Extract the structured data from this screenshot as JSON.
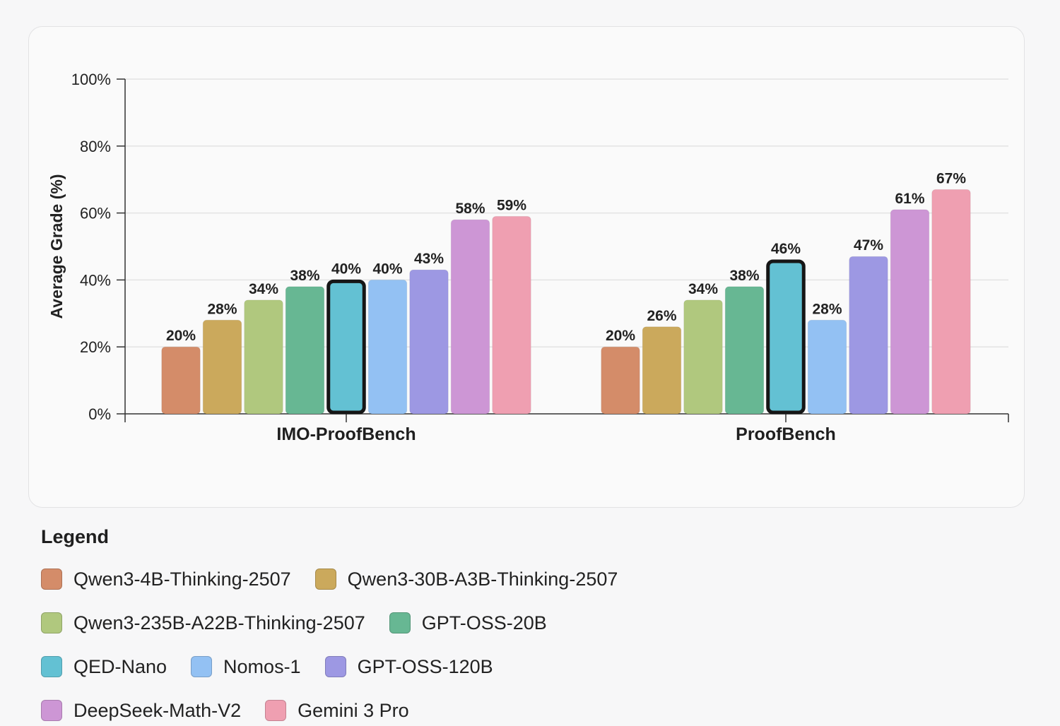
{
  "chart_data": {
    "type": "bar",
    "title": "",
    "xlabel": "",
    "ylabel": "Average Grade (%)",
    "ylim": [
      0,
      100
    ],
    "yticks": [
      "0%",
      "20%",
      "40%",
      "60%",
      "80%",
      "100%"
    ],
    "grid": true,
    "categories": [
      "IMO-ProofBench",
      "ProofBench"
    ],
    "highlighted_series": "QED-Nano",
    "series": [
      {
        "name": "Qwen3-4B-Thinking-2507",
        "color": "#d48c69",
        "values": [
          20,
          20
        ],
        "labels": [
          "20%",
          "20%"
        ]
      },
      {
        "name": "Qwen3-30B-A3B-Thinking-2507",
        "color": "#cba95c",
        "values": [
          28,
          26
        ],
        "labels": [
          "28%",
          "26%"
        ]
      },
      {
        "name": "Qwen3-235B-A22B-Thinking-2507",
        "color": "#b0c87e",
        "values": [
          34,
          34
        ],
        "labels": [
          "34%",
          "34%"
        ]
      },
      {
        "name": "GPT-OSS-20B",
        "color": "#67b793",
        "values": [
          38,
          38
        ],
        "labels": [
          "38%",
          "38%"
        ]
      },
      {
        "name": "QED-Nano",
        "color": "#63c1d3",
        "values": [
          40,
          46
        ],
        "labels": [
          "40%",
          "46%"
        ]
      },
      {
        "name": "Nomos-1",
        "color": "#93c1f3",
        "values": [
          40,
          28
        ],
        "labels": [
          "40%",
          "28%"
        ]
      },
      {
        "name": "GPT-OSS-120B",
        "color": "#9d98e3",
        "values": [
          43,
          47
        ],
        "labels": [
          "43%",
          "47%"
        ]
      },
      {
        "name": "DeepSeek-Math-V2",
        "color": "#cd96d5",
        "values": [
          58,
          61
        ],
        "labels": [
          "58%",
          "61%"
        ]
      },
      {
        "name": "Gemini 3 Pro",
        "color": "#ef9fb1",
        "values": [
          59,
          67
        ],
        "labels": [
          "59%",
          "67%"
        ]
      }
    ]
  },
  "legend": {
    "title": "Legend"
  }
}
